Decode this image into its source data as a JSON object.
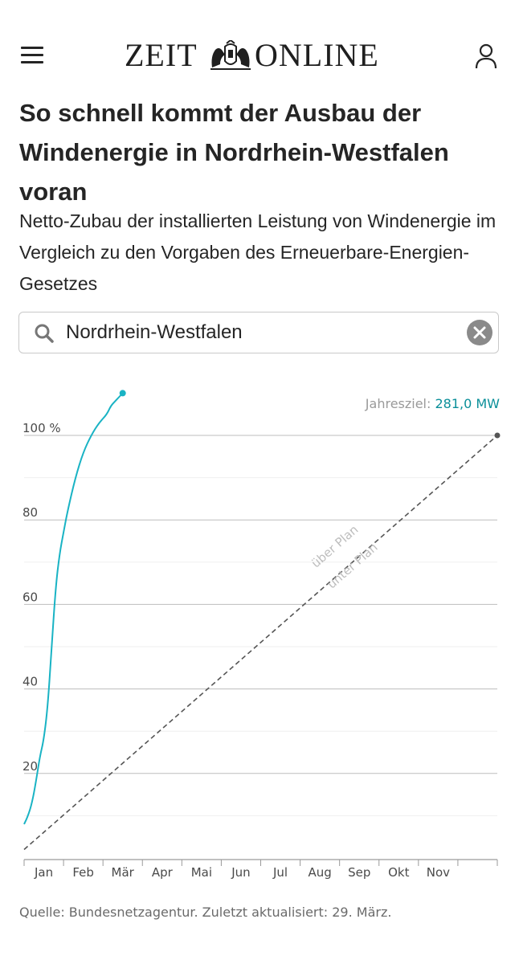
{
  "header": {
    "menu_icon": "hamburger-menu-icon",
    "logo_left": "ZEIT",
    "logo_right": "ONLINE",
    "user_icon": "user-icon"
  },
  "article": {
    "title": "So schnell kommt der Ausbau der Windenergie in Nordrhein-Westfalen voran",
    "subtitle": "Netto-Zubau der installierten Leistung von Windenergie im Vergleich zu den Vorgaben des Erneuerbare-Energien-Gesetzes"
  },
  "search": {
    "value": "Nordrhein-Westfalen",
    "icon": "search-icon",
    "clear_icon": "clear-icon"
  },
  "goal": {
    "label": "Jahresziel:",
    "value": "281,0 MW"
  },
  "chart_data": {
    "type": "line",
    "ylim": [
      0,
      110
    ],
    "yticks": [
      20,
      40,
      60,
      80,
      100
    ],
    "y_unit": "%",
    "grid": true,
    "months": [
      "Jan",
      "Feb",
      "Mär",
      "Apr",
      "Mai",
      "Jun",
      "Jul",
      "Aug",
      "Sep",
      "Okt",
      "Nov"
    ],
    "series": [
      {
        "color": "#19b3c4",
        "x": [
          0,
          0.1,
          0.2,
          0.3,
          0.4,
          0.5,
          0.6,
          0.7,
          0.8,
          0.9,
          1.0,
          1.1,
          1.3,
          1.5,
          1.7,
          1.9,
          2.1,
          2.2,
          2.3,
          2.4,
          2.5
        ],
        "y": [
          8,
          10,
          13,
          18,
          24,
          28,
          36,
          50,
          64,
          72,
          77,
          82,
          90,
          96,
          100,
          103,
          105,
          107,
          108,
          109,
          110
        ]
      }
    ],
    "plan_line": {
      "x": [
        0,
        12
      ],
      "y": [
        2,
        100
      ],
      "style": "dashed",
      "color": "#555555"
    },
    "annotations": [
      "über Plan",
      "unter Plan"
    ]
  },
  "source": "Quelle: Bundesnetzagentur. Zuletzt aktualisiert: 29. März."
}
